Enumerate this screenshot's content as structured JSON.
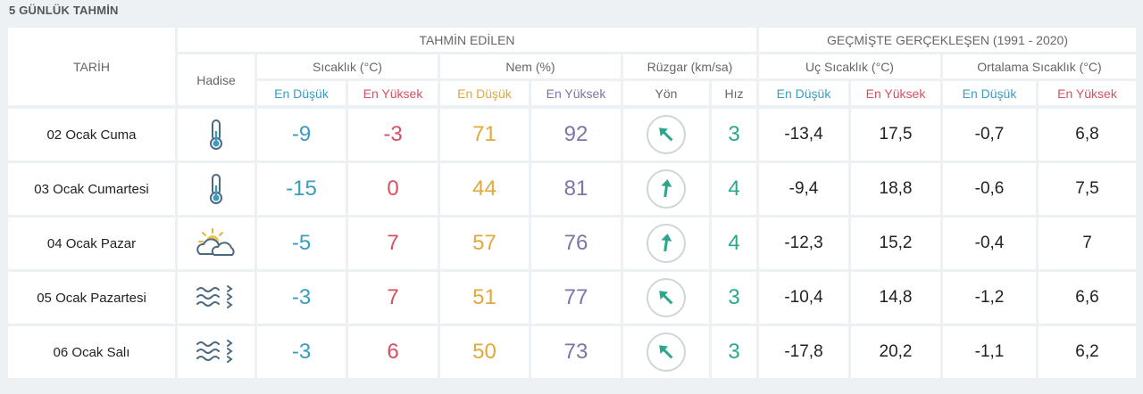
{
  "page_title": "5 GÜNLÜK TAHMİN",
  "headers": {
    "tarih": "TARİH",
    "tahmin_edilen": "TAHMİN EDİLEN",
    "gecmiste": "GEÇMİŞTE GERÇEKLEŞEN (1991 - 2020)",
    "hadise": "Hadise",
    "sicaklik": "Sıcaklık (°C)",
    "nem": "Nem (%)",
    "ruzgar": "Rüzgar (km/sa)",
    "uc_sicaklik": "Uç Sıcaklık (°C)",
    "ortalama_sicaklik": "Ortalama Sıcaklık (°C)",
    "en_dusuk": "En Düşük",
    "en_yuksek": "En Yüksek",
    "yon": "Yön",
    "hiz": "Hız"
  },
  "colors": {
    "blue": "#3a9cc0",
    "red": "#d64f62",
    "gold": "#e0a93a",
    "purple": "#7f73a8",
    "teal": "#2ba88c"
  },
  "rows": [
    {
      "date": "02 Ocak Cuma",
      "icon": "thermometer-icon",
      "temp_min": "-9",
      "temp_max": "-3",
      "hum_min": "71",
      "hum_max": "92",
      "wind_dir_icon": "arrow-northwest-icon",
      "wind_speed": "3",
      "extreme_min": "-13,4",
      "extreme_max": "17,5",
      "avg_min": "-0,7",
      "avg_max": "6,8"
    },
    {
      "date": "03 Ocak Cumartesi",
      "icon": "thermometer-icon",
      "temp_min": "-15",
      "temp_max": "0",
      "hum_min": "44",
      "hum_max": "81",
      "wind_dir_icon": "arrow-north-icon",
      "wind_speed": "4",
      "extreme_min": "-9,4",
      "extreme_max": "18,8",
      "avg_min": "-0,6",
      "avg_max": "7,5"
    },
    {
      "date": "04 Ocak Pazar",
      "icon": "partly-cloudy-icon",
      "temp_min": "-5",
      "temp_max": "7",
      "hum_min": "57",
      "hum_max": "76",
      "wind_dir_icon": "arrow-north-icon",
      "wind_speed": "4",
      "extreme_min": "-12,3",
      "extreme_max": "15,2",
      "avg_min": "-0,4",
      "avg_max": "7"
    },
    {
      "date": "05 Ocak Pazartesi",
      "icon": "haze-icon",
      "temp_min": "-3",
      "temp_max": "7",
      "hum_min": "51",
      "hum_max": "77",
      "wind_dir_icon": "arrow-northwest-icon",
      "wind_speed": "3",
      "extreme_min": "-10,4",
      "extreme_max": "14,8",
      "avg_min": "-1,2",
      "avg_max": "6,6"
    },
    {
      "date": "06 Ocak Salı",
      "icon": "haze-icon",
      "temp_min": "-3",
      "temp_max": "6",
      "hum_min": "50",
      "hum_max": "73",
      "wind_dir_icon": "arrow-northwest-icon",
      "wind_speed": "3",
      "extreme_min": "-17,8",
      "extreme_max": "20,2",
      "avg_min": "-1,1",
      "avg_max": "6,2"
    }
  ]
}
